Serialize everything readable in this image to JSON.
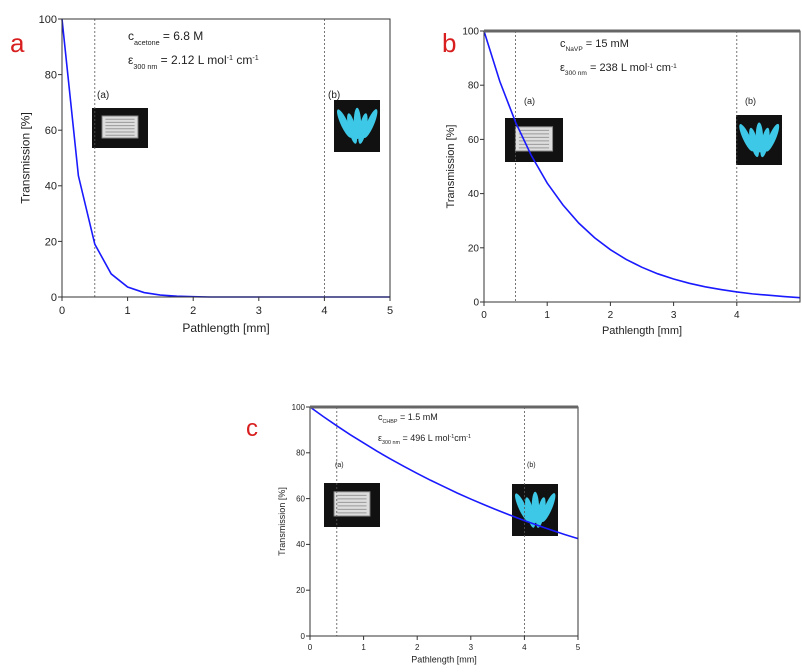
{
  "chart_data": [
    {
      "type": "line",
      "panel_label": "a",
      "x_label": "Pathlength [mm]",
      "y_label": "Transmission [%]",
      "x": [
        0,
        0.25,
        0.5,
        0.75,
        1,
        1.25,
        1.5,
        1.75,
        2,
        2.25,
        2.5,
        2.75,
        3,
        3.25,
        3.5,
        3.75,
        4,
        4.25,
        4.5,
        4.75,
        5
      ],
      "series": [
        {
          "color": "#1a1aff",
          "values": [
            100,
            43.6,
            19.0,
            8.3,
            3.6,
            1.6,
            0.7,
            0.3,
            0.1,
            0,
            0,
            0,
            0,
            0,
            0,
            0,
            0,
            0,
            0,
            0,
            0
          ]
        }
      ],
      "xlim": [
        0,
        5
      ],
      "ylim": [
        0,
        100
      ],
      "xticks": [
        0,
        1,
        2,
        3,
        4,
        5
      ],
      "yticks": [
        0,
        20,
        40,
        60,
        80,
        100
      ],
      "markers": [
        0.5,
        4
      ],
      "photo_labels": [
        "(a)",
        "(b)"
      ],
      "annotations": [
        [
          {
            "text": "c"
          },
          {
            "text": "acetone",
            "sub": true
          },
          {
            "text": " = 6.8 M"
          }
        ],
        [
          {
            "text": "ε"
          },
          {
            "text": "300 nm",
            "sub": true
          },
          {
            "text": " = 2.12 L mol"
          },
          {
            "text": "-1",
            "sup": true
          },
          {
            "text": " cm"
          },
          {
            "text": "-1",
            "sup": true
          }
        ]
      ]
    },
    {
      "type": "line",
      "panel_label": "b",
      "x_label": "Pathlength [mm]",
      "y_label": "Transmission [%]",
      "x": [
        0,
        0.25,
        0.5,
        0.75,
        1,
        1.25,
        1.5,
        1.75,
        2,
        2.25,
        2.5,
        2.75,
        3,
        3.25,
        3.5,
        3.75,
        4,
        4.25,
        4.5,
        4.75,
        5
      ],
      "series": [
        {
          "color": "#1a1aff",
          "values": [
            100,
            81.4,
            66.3,
            54.0,
            43.9,
            35.8,
            29.1,
            23.7,
            19.3,
            15.7,
            12.8,
            10.4,
            8.5,
            6.9,
            5.6,
            4.6,
            3.7,
            3.0,
            2.5,
            2.0,
            1.6
          ]
        }
      ],
      "xlim": [
        0,
        5
      ],
      "ylim": [
        0,
        100
      ],
      "xticks": [
        0,
        1,
        2,
        3,
        4
      ],
      "yticks": [
        0,
        20,
        40,
        60,
        80,
        100
      ],
      "markers": [
        0.5,
        4
      ],
      "photo_labels": [
        "(a)",
        "(b)"
      ],
      "annotations": [
        [
          {
            "text": "c"
          },
          {
            "text": "NaVP",
            "sub": true
          },
          {
            "text": " = 15 mM"
          }
        ],
        [
          {
            "text": "ε"
          },
          {
            "text": "300 nm",
            "sub": true
          },
          {
            "text": " = 238 L mol"
          },
          {
            "text": "-1",
            "sup": true
          },
          {
            "text": " cm"
          },
          {
            "text": "-1",
            "sup": true
          }
        ]
      ]
    },
    {
      "type": "line",
      "panel_label": "c",
      "x_label": "Pathlength [mm]",
      "y_label": "Transmission [%]",
      "x": [
        0,
        0.25,
        0.5,
        0.75,
        1,
        1.25,
        1.5,
        1.75,
        2,
        2.25,
        2.5,
        2.75,
        3,
        3.25,
        3.5,
        3.75,
        4,
        4.25,
        4.5,
        4.75,
        5
      ],
      "series": [
        {
          "color": "#1a1aff",
          "values": [
            100,
            95.8,
            91.8,
            87.9,
            84.3,
            80.7,
            77.3,
            74.1,
            71.0,
            68.0,
            65.2,
            62.4,
            59.8,
            57.3,
            54.9,
            52.6,
            50.4,
            48.3,
            46.3,
            44.3,
            42.5
          ]
        }
      ],
      "xlim": [
        0,
        5
      ],
      "ylim": [
        0,
        100
      ],
      "xticks": [
        0,
        1,
        2,
        3,
        4,
        5
      ],
      "yticks": [
        0,
        20,
        40,
        60,
        80,
        100
      ],
      "markers": [
        0.5,
        4
      ],
      "photo_labels": [
        "(a)",
        "(b)"
      ],
      "annotations": [
        [
          {
            "text": "c"
          },
          {
            "text": "CHBP",
            "sub": true
          },
          {
            "text": " = 1.5 mM"
          }
        ],
        [
          {
            "text": "ε"
          },
          {
            "text": "300 nm",
            "sub": true
          },
          {
            "text": " = 496 L mol"
          },
          {
            "text": "-1",
            "sup": true
          },
          {
            "text": "cm"
          },
          {
            "text": "-1",
            "sup": true
          }
        ]
      ]
    }
  ]
}
